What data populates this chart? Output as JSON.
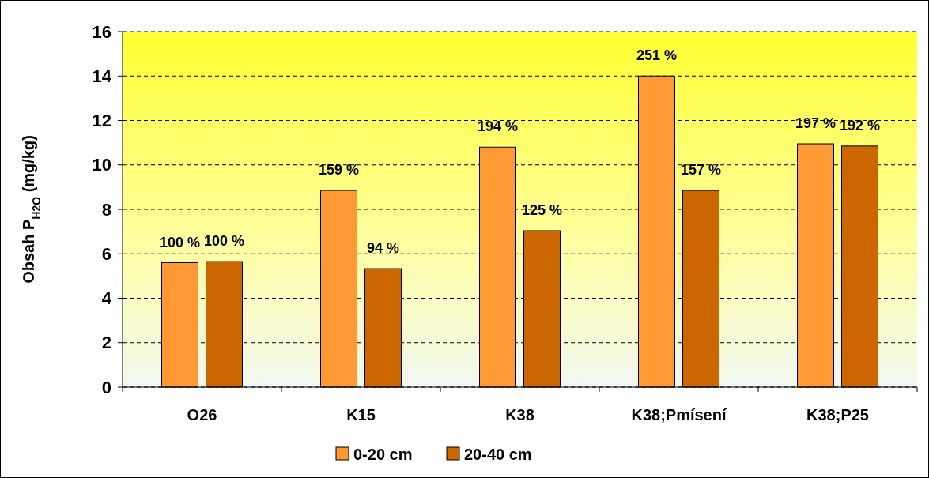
{
  "chart_data": {
    "type": "bar",
    "ylabel": "Obsah P$_{H2O}$ (mg/kg)",
    "categories": [
      "O26",
      "K15",
      "K38",
      "K38;Pmísení",
      "K38;P25"
    ],
    "series": [
      {
        "name": "0-20 cm",
        "color": "#ff9933",
        "values": [
          5.6,
          8.85,
          10.8,
          14.0,
          10.95
        ]
      },
      {
        "name": "20-40 cm",
        "color": "#cc6600",
        "values": [
          5.65,
          5.33,
          7.04,
          8.85,
          10.85
        ]
      }
    ],
    "annotations": [
      {
        "text": "100 %",
        "x": "O26",
        "y": 5.6
      },
      {
        "text": "100 %",
        "x": "O26",
        "y": 5.65
      },
      {
        "text": "159 %",
        "x": "K15",
        "y": 8.85
      },
      {
        "text": "94 %",
        "x": "K15",
        "y": 5.33
      },
      {
        "text": "194 %",
        "x": "K38",
        "y": 10.8
      },
      {
        "text": "125 %",
        "x": "K38",
        "y": 7.04
      },
      {
        "text": "251 %",
        "x": "K38;Pmísení",
        "y": 14.0
      },
      {
        "text": "157 %",
        "x": "K38;Pmísení",
        "y": 8.85
      },
      {
        "text": "197 %",
        "x": "K38;P25",
        "y": 10.95
      },
      {
        "text": "192 %",
        "x": "K38;P25",
        "y": 10.85
      }
    ],
    "ylim": [
      0,
      16
    ],
    "yticks": [
      0,
      2,
      4,
      6,
      8,
      10,
      12,
      14,
      16
    ],
    "grid": "y",
    "legend": "bottom"
  }
}
